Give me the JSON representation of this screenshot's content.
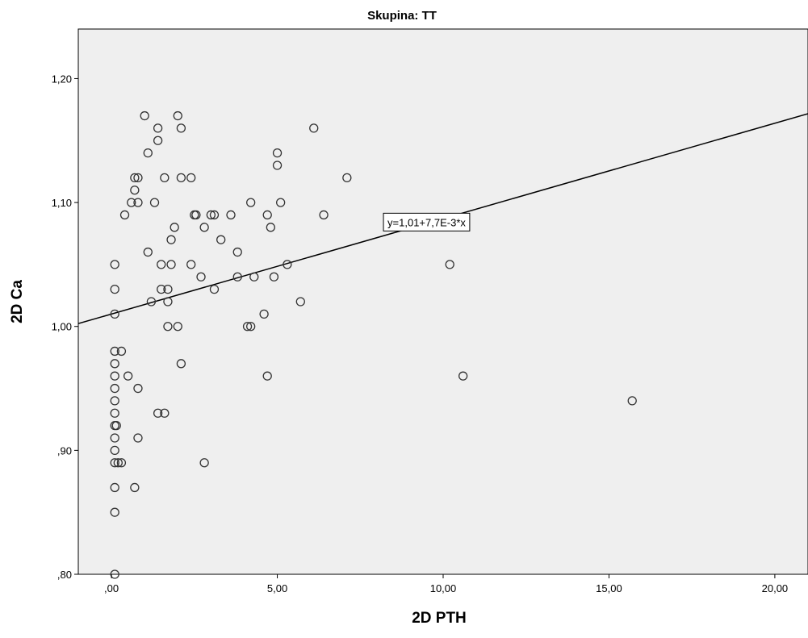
{
  "chart_data": {
    "type": "scatter",
    "title": "Skupina: TT",
    "xlabel": "2D PTH",
    "ylabel": "2D Ca",
    "xlim": [
      -1.0,
      21.0
    ],
    "ylim": [
      0.8,
      1.24
    ],
    "xticks": [
      {
        "value": 0,
        "label": ",00"
      },
      {
        "value": 5,
        "label": "5,00"
      },
      {
        "value": 10,
        "label": "10,00"
      },
      {
        "value": 15,
        "label": "15,00"
      },
      {
        "value": 20,
        "label": "20,00"
      }
    ],
    "yticks": [
      {
        "value": 0.8,
        "label": ",80"
      },
      {
        "value": 0.9,
        "label": ",90"
      },
      {
        "value": 1.0,
        "label": "1,00"
      },
      {
        "value": 1.1,
        "label": "1,10"
      },
      {
        "value": 1.2,
        "label": "1,20"
      }
    ],
    "fit_line": {
      "intercept": 1.01,
      "slope": 0.0077,
      "label": "y=1,01+7,7E-3*x",
      "label_x": 8.2
    },
    "plot_background": "#efefef",
    "marker_color": "#333333",
    "points": [
      [
        0.1,
        0.8
      ],
      [
        0.1,
        0.85
      ],
      [
        0.1,
        0.87
      ],
      [
        0.7,
        0.87
      ],
      [
        0.1,
        0.89
      ],
      [
        0.2,
        0.89
      ],
      [
        0.3,
        0.89
      ],
      [
        2.8,
        0.89
      ],
      [
        0.1,
        0.9
      ],
      [
        0.1,
        0.91
      ],
      [
        0.8,
        0.91
      ],
      [
        0.1,
        0.92
      ],
      [
        0.15,
        0.92
      ],
      [
        0.1,
        0.93
      ],
      [
        1.4,
        0.93
      ],
      [
        1.6,
        0.93
      ],
      [
        0.1,
        0.94
      ],
      [
        15.7,
        0.94
      ],
      [
        0.1,
        0.95
      ],
      [
        0.8,
        0.95
      ],
      [
        0.1,
        0.96
      ],
      [
        0.5,
        0.96
      ],
      [
        4.7,
        0.96
      ],
      [
        10.6,
        0.96
      ],
      [
        0.1,
        0.97
      ],
      [
        2.1,
        0.97
      ],
      [
        0.1,
        0.98
      ],
      [
        0.3,
        0.98
      ],
      [
        1.7,
        1.0
      ],
      [
        2.0,
        1.0
      ],
      [
        4.1,
        1.0
      ],
      [
        4.2,
        1.0
      ],
      [
        0.1,
        1.01
      ],
      [
        4.6,
        1.01
      ],
      [
        1.2,
        1.02
      ],
      [
        1.7,
        1.02
      ],
      [
        5.7,
        1.02
      ],
      [
        0.1,
        1.03
      ],
      [
        1.5,
        1.03
      ],
      [
        1.7,
        1.03
      ],
      [
        3.1,
        1.03
      ],
      [
        2.7,
        1.04
      ],
      [
        3.8,
        1.04
      ],
      [
        4.3,
        1.04
      ],
      [
        4.9,
        1.04
      ],
      [
        0.1,
        1.05
      ],
      [
        1.5,
        1.05
      ],
      [
        1.8,
        1.05
      ],
      [
        2.4,
        1.05
      ],
      [
        5.3,
        1.05
      ],
      [
        10.2,
        1.05
      ],
      [
        1.1,
        1.06
      ],
      [
        3.8,
        1.06
      ],
      [
        1.8,
        1.07
      ],
      [
        3.3,
        1.07
      ],
      [
        1.9,
        1.08
      ],
      [
        2.8,
        1.08
      ],
      [
        4.8,
        1.08
      ],
      [
        0.4,
        1.09
      ],
      [
        2.5,
        1.09
      ],
      [
        2.55,
        1.09
      ],
      [
        3.0,
        1.09
      ],
      [
        3.1,
        1.09
      ],
      [
        3.6,
        1.09
      ],
      [
        4.7,
        1.09
      ],
      [
        6.4,
        1.09
      ],
      [
        0.6,
        1.1
      ],
      [
        0.8,
        1.1
      ],
      [
        1.3,
        1.1
      ],
      [
        4.2,
        1.1
      ],
      [
        5.1,
        1.1
      ],
      [
        0.7,
        1.11
      ],
      [
        0.7,
        1.12
      ],
      [
        0.8,
        1.12
      ],
      [
        1.6,
        1.12
      ],
      [
        2.1,
        1.12
      ],
      [
        2.4,
        1.12
      ],
      [
        7.1,
        1.12
      ],
      [
        5.0,
        1.13
      ],
      [
        1.1,
        1.14
      ],
      [
        5.0,
        1.14
      ],
      [
        1.4,
        1.15
      ],
      [
        1.4,
        1.16
      ],
      [
        2.1,
        1.16
      ],
      [
        6.1,
        1.16
      ],
      [
        1.0,
        1.17
      ],
      [
        2.0,
        1.17
      ]
    ]
  }
}
